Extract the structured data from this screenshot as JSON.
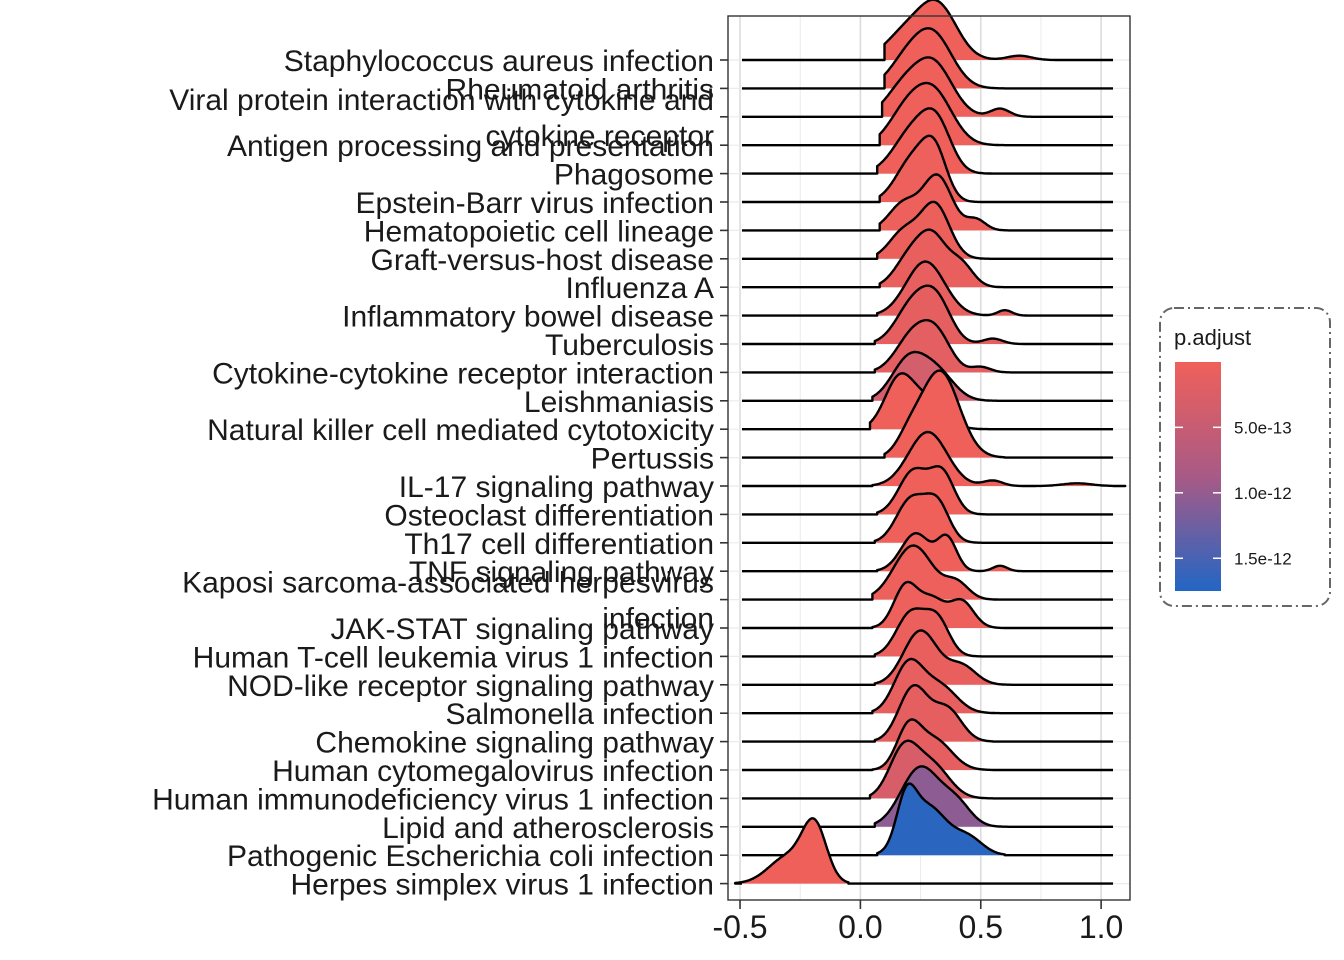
{
  "chart_data": {
    "type": "ridgeline",
    "xlim": [
      -0.55,
      1.12
    ],
    "x_ticks": [
      -0.5,
      0.0,
      0.5,
      1.0
    ],
    "x_tick_labels": [
      "-0.5",
      "0.0",
      "0.5",
      "1.0"
    ],
    "grid": true,
    "legend": {
      "title": "p.adjust",
      "placement": "right",
      "ticks": [
        5e-13,
        1e-12,
        1.5e-12
      ],
      "tick_labels": [
        "5.0e-13",
        "1.0e-12",
        "1.5e-12"
      ],
      "range": [
        1e-15,
        1.75e-12
      ],
      "low_color": "#f0605a",
      "high_color": "#2266c4"
    },
    "series": [
      {
        "name": "Staphylococcus aureus infection",
        "p_adjust": 1e-15,
        "peaks": [
          [
            0.32,
            0.08,
            1.0
          ],
          [
            0.18,
            0.08,
            0.45
          ],
          [
            0.66,
            0.05,
            0.08
          ]
        ],
        "range": [
          0.1,
          0.9
        ]
      },
      {
        "name": "Rheumatoid arthritis",
        "p_adjust": 2e-15,
        "peaks": [
          [
            0.3,
            0.08,
            1.0
          ],
          [
            0.18,
            0.07,
            0.4
          ]
        ],
        "range": [
          0.1,
          0.75
        ]
      },
      {
        "name": "Viral protein interaction with cytokine and cytokine receptor",
        "p_adjust": 3e-15,
        "peaks": [
          [
            0.3,
            0.08,
            1.0
          ],
          [
            0.17,
            0.07,
            0.45
          ],
          [
            0.58,
            0.04,
            0.15
          ]
        ],
        "range": [
          0.09,
          0.8
        ]
      },
      {
        "name": "Antigen processing and presentation",
        "p_adjust": 5e-15,
        "peaks": [
          [
            0.3,
            0.08,
            1.0
          ],
          [
            0.18,
            0.07,
            0.5
          ]
        ],
        "range": [
          0.08,
          0.7
        ]
      },
      {
        "name": "Phagosome",
        "p_adjust": 1e-14,
        "peaks": [
          [
            0.22,
            0.08,
            0.8
          ],
          [
            0.32,
            0.06,
            0.75
          ]
        ],
        "range": [
          0.07,
          0.75
        ]
      },
      {
        "name": "Epstein-Barr virus infection",
        "p_adjust": 2e-14,
        "peaks": [
          [
            0.22,
            0.07,
            0.8
          ],
          [
            0.31,
            0.05,
            0.8
          ]
        ],
        "range": [
          0.08,
          0.65
        ]
      },
      {
        "name": "Hematopoietic cell lineage",
        "p_adjust": 3e-14,
        "peaks": [
          [
            0.32,
            0.06,
            1.0
          ],
          [
            0.18,
            0.06,
            0.5
          ],
          [
            0.48,
            0.04,
            0.2
          ]
        ],
        "range": [
          0.08,
          0.65
        ]
      },
      {
        "name": "Graft-versus-host disease",
        "p_adjust": 5e-14,
        "peaks": [
          [
            0.31,
            0.06,
            1.0
          ],
          [
            0.18,
            0.06,
            0.5
          ]
        ],
        "range": [
          0.07,
          0.6
        ]
      },
      {
        "name": "Influenza A",
        "p_adjust": 8e-14,
        "peaks": [
          [
            0.3,
            0.06,
            0.9
          ],
          [
            0.2,
            0.06,
            0.5
          ],
          [
            0.42,
            0.05,
            0.4
          ]
        ],
        "range": [
          0.08,
          0.7
        ]
      },
      {
        "name": "Inflammatory bowel disease",
        "p_adjust": 1e-13,
        "peaks": [
          [
            0.27,
            0.08,
            1.0
          ],
          [
            0.6,
            0.03,
            0.1
          ]
        ],
        "range": [
          0.07,
          0.7
        ]
      },
      {
        "name": "Tuberculosis",
        "p_adjust": 1.2e-13,
        "peaks": [
          [
            0.22,
            0.07,
            0.75
          ],
          [
            0.32,
            0.06,
            0.7
          ],
          [
            0.55,
            0.04,
            0.1
          ]
        ],
        "range": [
          0.06,
          0.7
        ]
      },
      {
        "name": "Cytokine-cytokine receptor interaction",
        "p_adjust": 1.5e-13,
        "peaks": [
          [
            0.22,
            0.07,
            0.7
          ],
          [
            0.32,
            0.06,
            0.6
          ],
          [
            0.5,
            0.04,
            0.1
          ]
        ],
        "range": [
          0.06,
          0.65
        ]
      },
      {
        "name": "Leishmaniasis",
        "p_adjust": 3.5e-13,
        "peaks": [
          [
            0.2,
            0.07,
            0.75
          ],
          [
            0.32,
            0.07,
            0.5
          ]
        ],
        "range": [
          0.05,
          0.6
        ]
      },
      {
        "name": "Natural killer cell mediated cytotoxicity",
        "p_adjust": 1e-15,
        "peaks": [
          [
            0.16,
            0.06,
            0.9
          ],
          [
            0.28,
            0.07,
            0.5
          ]
        ],
        "range": [
          0.04,
          0.55
        ]
      },
      {
        "name": "Pertussis",
        "p_adjust": 1e-15,
        "peaks": [
          [
            0.33,
            0.08,
            1.6
          ],
          [
            0.2,
            0.05,
            0.3
          ]
        ],
        "range": [
          0.1,
          0.6
        ]
      },
      {
        "name": "IL-17 signaling pathway",
        "p_adjust": 2e-15,
        "peaks": [
          [
            0.28,
            0.08,
            1.0
          ],
          [
            0.55,
            0.04,
            0.1
          ],
          [
            0.9,
            0.06,
            0.05
          ]
        ],
        "range": [
          0.05,
          1.1
        ]
      },
      {
        "name": "Osteoclast differentiation",
        "p_adjust": 4e-15,
        "peaks": [
          [
            0.22,
            0.06,
            0.8
          ],
          [
            0.34,
            0.05,
            0.75
          ]
        ],
        "range": [
          0.07,
          0.6
        ]
      },
      {
        "name": "Th17 cell differentiation",
        "p_adjust": 6e-15,
        "peaks": [
          [
            0.21,
            0.06,
            0.8
          ],
          [
            0.32,
            0.05,
            0.7
          ]
        ],
        "range": [
          0.06,
          0.6
        ]
      },
      {
        "name": "TNF signaling pathway",
        "p_adjust": 8e-15,
        "peaks": [
          [
            0.23,
            0.06,
            0.7
          ],
          [
            0.36,
            0.04,
            0.6
          ],
          [
            0.58,
            0.03,
            0.1
          ]
        ],
        "range": [
          0.07,
          0.7
        ]
      },
      {
        "name": "Kaposi sarcoma-associated herpesvirus infection",
        "p_adjust": 2e-14,
        "peaks": [
          [
            0.22,
            0.08,
            1.0
          ],
          [
            0.4,
            0.05,
            0.3
          ]
        ],
        "range": [
          0.05,
          0.65
        ]
      },
      {
        "name": "JAK-STAT signaling pathway",
        "p_adjust": 4e-14,
        "peaks": [
          [
            0.19,
            0.05,
            0.8
          ],
          [
            0.3,
            0.05,
            0.5
          ],
          [
            0.42,
            0.05,
            0.5
          ]
        ],
        "range": [
          0.05,
          0.65
        ]
      },
      {
        "name": "Human T-cell leukemia virus 1 infection",
        "p_adjust": 6e-14,
        "peaks": [
          [
            0.21,
            0.06,
            0.8
          ],
          [
            0.32,
            0.05,
            0.65
          ]
        ],
        "range": [
          0.06,
          0.65
        ]
      },
      {
        "name": "NOD-like receptor signaling pathway",
        "p_adjust": 8e-14,
        "peaks": [
          [
            0.25,
            0.07,
            1.0
          ],
          [
            0.42,
            0.06,
            0.35
          ]
        ],
        "range": [
          0.06,
          0.65
        ]
      },
      {
        "name": "Salmonella infection",
        "p_adjust": 1e-13,
        "peaks": [
          [
            0.2,
            0.06,
            0.9
          ],
          [
            0.33,
            0.07,
            0.5
          ]
        ],
        "range": [
          0.05,
          0.6
        ]
      },
      {
        "name": "Chemokine signaling pathway",
        "p_adjust": 1.2e-13,
        "peaks": [
          [
            0.22,
            0.06,
            1.0
          ],
          [
            0.36,
            0.06,
            0.6
          ]
        ],
        "range": [
          0.06,
          0.55
        ]
      },
      {
        "name": "Human cytomegalovirus infection",
        "p_adjust": 1.4e-13,
        "peaks": [
          [
            0.2,
            0.05,
            0.75
          ],
          [
            0.31,
            0.07,
            0.55
          ]
        ],
        "range": [
          0.05,
          0.55
        ]
      },
      {
        "name": "Human immunodeficiency virus 1 infection",
        "p_adjust": 3e-13,
        "peaks": [
          [
            0.18,
            0.06,
            0.9
          ],
          [
            0.3,
            0.07,
            0.6
          ]
        ],
        "range": [
          0.04,
          0.55
        ]
      },
      {
        "name": "Lipid and atherosclerosis",
        "p_adjust": 1.05e-12,
        "peaks": [
          [
            0.25,
            0.08,
            1.1
          ],
          [
            0.4,
            0.06,
            0.4
          ]
        ],
        "range": [
          0.06,
          0.65
        ]
      },
      {
        "name": "Pathogenic Escherichia coli infection",
        "p_adjust": 1.7e-12,
        "peaks": [
          [
            0.19,
            0.04,
            0.8
          ],
          [
            0.28,
            0.08,
            0.9
          ],
          [
            0.45,
            0.06,
            0.3
          ]
        ],
        "range": [
          0.07,
          0.6
        ]
      },
      {
        "name": "Herpes simplex virus 1 infection",
        "p_adjust": 3e-15,
        "peaks": [
          [
            -0.19,
            0.05,
            1.0
          ],
          [
            -0.3,
            0.08,
            0.5
          ]
        ],
        "range": [
          -0.52,
          -0.05
        ]
      }
    ]
  }
}
